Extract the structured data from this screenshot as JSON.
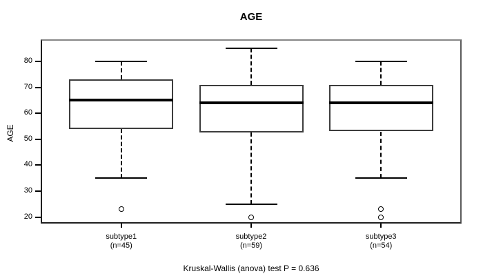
{
  "chart_data": {
    "type": "boxplot",
    "title": "AGE",
    "ylabel": "AGE",
    "xlabel": "",
    "annotation": "Kruskal-Wallis (anova) test P = 0.636",
    "ylim": [
      17.5,
      88.5
    ],
    "yticks": [
      20,
      30,
      40,
      50,
      60,
      70,
      80
    ],
    "grid": false,
    "legend": "none",
    "groups": [
      {
        "label": "subtype1",
        "n_label": "(n=45)",
        "n": 45,
        "lower_whisker": 35,
        "q1": 54,
        "median": 65,
        "q3": 73,
        "upper_whisker": 80,
        "outliers": [
          23
        ]
      },
      {
        "label": "subtype2",
        "n_label": "(n=59)",
        "n": 59,
        "lower_whisker": 25,
        "q1": 52.5,
        "median": 64,
        "q3": 71,
        "upper_whisker": 85,
        "outliers": [
          20
        ]
      },
      {
        "label": "subtype3",
        "n_label": "(n=54)",
        "n": 54,
        "lower_whisker": 35,
        "q1": 53,
        "median": 64,
        "q3": 71,
        "upper_whisker": 80,
        "outliers": [
          23,
          20
        ]
      }
    ],
    "colors": {
      "frame": "#808080",
      "axis": "#1f1f1f",
      "box_border": "#3d3d3d",
      "median": "#000000",
      "whisker": "#000000",
      "outlier": "#000000",
      "background": "#ffffff"
    }
  }
}
